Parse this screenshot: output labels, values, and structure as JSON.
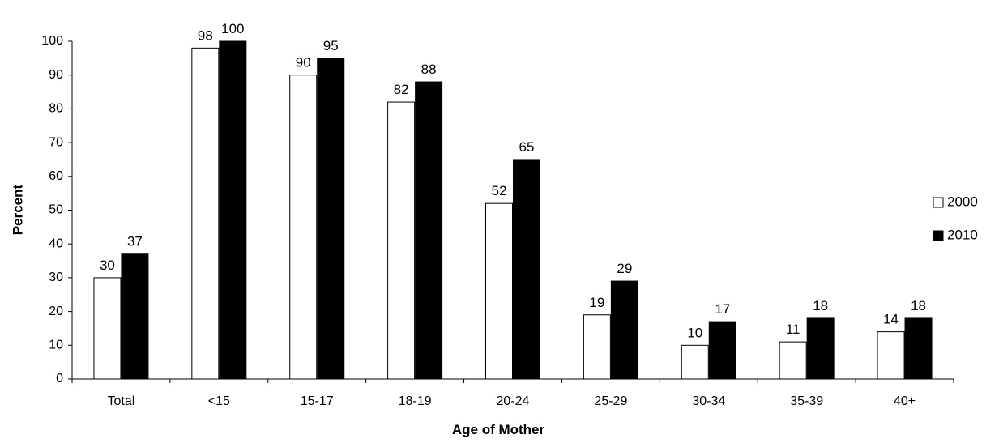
{
  "chart_data": {
    "type": "bar",
    "title": "",
    "xlabel": "Age of Mother",
    "ylabel": "Percent",
    "categories": [
      "Total",
      "<15",
      "15-17",
      "18-19",
      "20-24",
      "25-29",
      "30-34",
      "35-39",
      "40+"
    ],
    "series": [
      {
        "name": "2000",
        "values": [
          30,
          98,
          90,
          82,
          52,
          19,
          10,
          11,
          14
        ],
        "color": "#ffffff"
      },
      {
        "name": "2010",
        "values": [
          37,
          100,
          95,
          88,
          65,
          29,
          17,
          18,
          18
        ],
        "color": "#000000"
      }
    ],
    "data_labels": [
      [
        "30",
        "98",
        "90",
        "82",
        "52",
        "19",
        "10",
        "11",
        "14"
      ],
      [
        "37",
        "100",
        "95",
        "88",
        "65",
        "29",
        "17",
        "18",
        "18"
      ]
    ],
    "ylim": [
      0,
      100
    ],
    "yticks": [
      0,
      10,
      20,
      30,
      40,
      50,
      60,
      70,
      80,
      90,
      100
    ],
    "grid": false,
    "legend": {
      "position": "right",
      "entries": [
        "2000",
        "2010"
      ]
    }
  }
}
